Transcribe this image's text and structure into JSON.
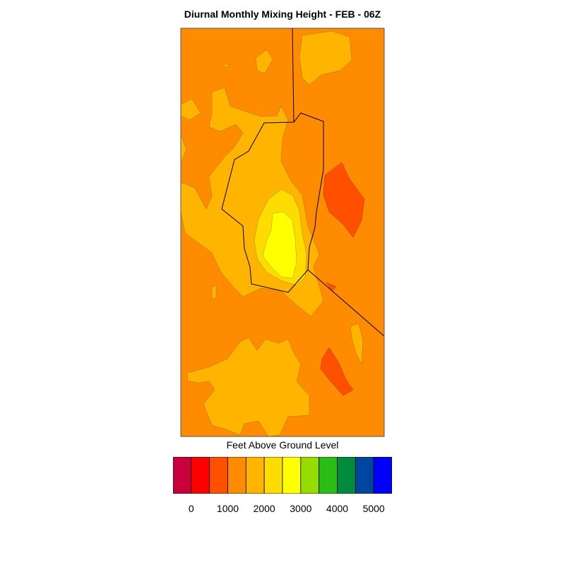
{
  "title": "Diurnal Monthly Mixing Height - FEB - 06Z",
  "colorbar": {
    "label": "Feet Above Ground Level",
    "colors": [
      "#c8003c",
      "#ff0000",
      "#ff5000",
      "#ff8c00",
      "#ffb400",
      "#ffdc00",
      "#ffff00",
      "#96dc00",
      "#28be14",
      "#008c3c",
      "#0046a0",
      "#0000ff"
    ],
    "ticks": [
      "0",
      "1000",
      "2000",
      "3000",
      "4000",
      "5000"
    ]
  }
}
